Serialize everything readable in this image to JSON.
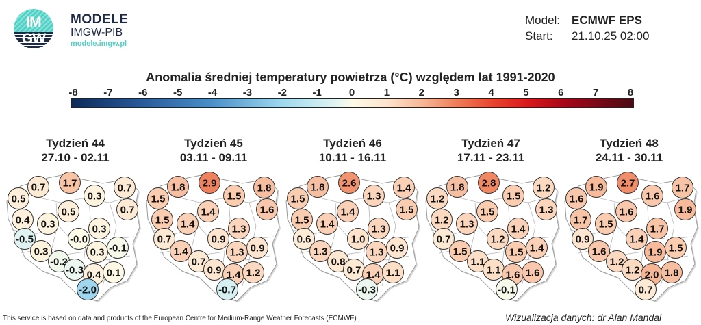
{
  "logo": {
    "text_top": "IM",
    "text_bottom": "GW",
    "brand_name": "MODELE",
    "brand_org": "IMGW-PIB",
    "brand_url": "modele.imgw.pl",
    "colors": {
      "teal": "#4fd1c5",
      "navy": "#1d2a44"
    }
  },
  "header": {
    "model_label": "Model:",
    "model_value": "ECMWF EPS",
    "start_label": "Start:",
    "start_value": "21.10.25 02:00"
  },
  "title": "Anomalia średniej temperatury powietrza (°C) względem lat 1991-2020",
  "colorbar": {
    "ticks": [
      "-8",
      "-7",
      "-6",
      "-5",
      "-4",
      "-3",
      "-2",
      "-1",
      "0",
      "1",
      "2",
      "3",
      "4",
      "5",
      "6",
      "7",
      "8"
    ],
    "range": [
      -8,
      8
    ],
    "stops": [
      {
        "v": -8,
        "c": "#0d2b5a"
      },
      {
        "v": -6,
        "c": "#2a5a9a"
      },
      {
        "v": -4,
        "c": "#4a90c8"
      },
      {
        "v": -2,
        "c": "#9fd8ee"
      },
      {
        "v": -0.5,
        "c": "#dff4f2"
      },
      {
        "v": 0,
        "c": "#fdfbe8"
      },
      {
        "v": 1,
        "c": "#fde3cc"
      },
      {
        "v": 2,
        "c": "#f6b696"
      },
      {
        "v": 3,
        "c": "#ee7c58"
      },
      {
        "v": 4,
        "c": "#e8442e"
      },
      {
        "v": 5,
        "c": "#d7191c"
      },
      {
        "v": 6,
        "c": "#a8081a"
      },
      {
        "v": 8,
        "c": "#4a0a14"
      }
    ]
  },
  "weeks": [
    {
      "title": "Tydzień 44",
      "dates": "27.10 - 02.11",
      "values": [
        "0.7",
        "1.7",
        "0.7",
        "0.5",
        "0.3",
        "0.5",
        "0.7",
        "0.4",
        "0.3",
        "0.3",
        "-0.5",
        "-0.0",
        "0.3",
        "0.3",
        "-0.1",
        "-0.2",
        "-0.3",
        "0.4",
        "0.1",
        "-2.0"
      ]
    },
    {
      "title": "Tydzień 45",
      "dates": "03.11 - 09.11",
      "values": [
        "1.8",
        "2.9",
        "1.8",
        "1.5",
        "1.5",
        "1.4",
        "1.6",
        "1.5",
        "1.4",
        "1.3",
        "0.7",
        "0.9",
        "1.4",
        "1.3",
        "0.9",
        "0.7",
        "0.9",
        "1.4",
        "1.2",
        "-0.7"
      ]
    },
    {
      "title": "Tydzień 46",
      "dates": "10.11 - 16.11",
      "values": [
        "1.8",
        "2.6",
        "1.4",
        "1.5",
        "1.3",
        "1.4",
        "1.5",
        "1.5",
        "1.4",
        "1.3",
        "0.6",
        "1.0",
        "1.3",
        "1.3",
        "0.9",
        "0.8",
        "0.7",
        "1.4",
        "1.1",
        "-0.3"
      ]
    },
    {
      "title": "Tydzień 47",
      "dates": "17.11 - 23.11",
      "values": [
        "1.8",
        "2.8",
        "1.2",
        "1.2",
        "1.5",
        "1.5",
        "1.3",
        "1.2",
        "1.3",
        "1.4",
        "0.7",
        "1.2",
        "1.5",
        "1.5",
        "1.4",
        "1.1",
        "1.1",
        "1.6",
        "1.6",
        "-0.1"
      ]
    },
    {
      "title": "Tydzień 48",
      "dates": "24.11 - 30.11",
      "values": [
        "1.9",
        "2.7",
        "1.7",
        "1.6",
        "1.6",
        "1.6",
        "1.9",
        "1.7",
        "1.5",
        "1.7",
        "0.9",
        "1.4",
        "1.6",
        "1.9",
        "1.5",
        "1.2",
        "1.2",
        "2.0",
        "1.8",
        "0.7"
      ]
    }
  ],
  "footer": {
    "source": "This service is based on data and products of the European Centre for Medium-Range Weather Forecasts (ECMWF)",
    "credit": "Wizualizacja danych: dr Alan Mandal"
  }
}
